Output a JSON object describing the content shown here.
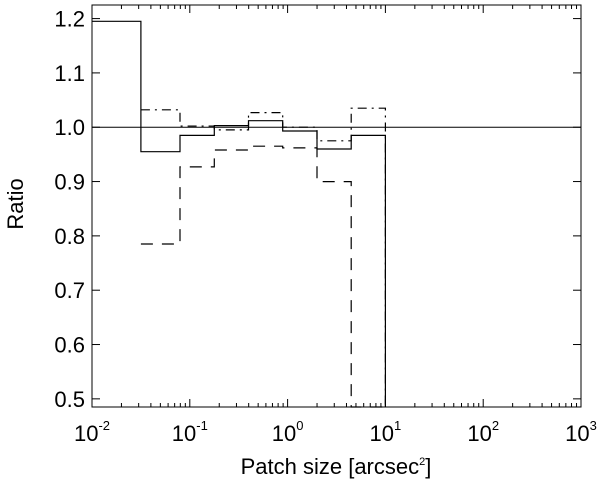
{
  "chart_data": {
    "type": "line",
    "step": true,
    "xlabel": "Patch size [arcsec",
    "xlabel_sup": "2",
    "xlabel_close": "]",
    "ylabel": "Ratio",
    "xscale": "log",
    "xlim": [
      0.01,
      1000
    ],
    "ylim": [
      0.485,
      1.225
    ],
    "x_ticks": [
      {
        "base": "10",
        "exp": "-2"
      },
      {
        "base": "10",
        "exp": "-1"
      },
      {
        "base": "10",
        "exp": "0"
      },
      {
        "base": "10",
        "exp": "1"
      },
      {
        "base": "10",
        "exp": "2"
      },
      {
        "base": "10",
        "exp": "3"
      }
    ],
    "y_ticks": [
      "0.5",
      "0.6",
      "0.7",
      "0.8",
      "0.9",
      "1.0",
      "1.1",
      "1.2"
    ],
    "grid": false,
    "reference_line": 1.0,
    "bin_edges": [
      0.01,
      0.0316,
      0.0794,
      0.178,
      0.398,
      0.891,
      2.0,
      4.47,
      10.0
    ],
    "series": [
      {
        "style": "solid",
        "values": [
          1.195,
          0.955,
          0.985,
          1.003,
          1.012,
          0.993,
          0.96,
          0.985
        ]
      },
      {
        "style": "dashed",
        "values": [
          null,
          0.785,
          0.927,
          0.958,
          0.965,
          0.962,
          0.9,
          0.48
        ]
      },
      {
        "style": "dashdot",
        "values": [
          null,
          1.032,
          1.002,
          0.995,
          1.027,
          1.0,
          0.975,
          1.035
        ]
      }
    ]
  }
}
